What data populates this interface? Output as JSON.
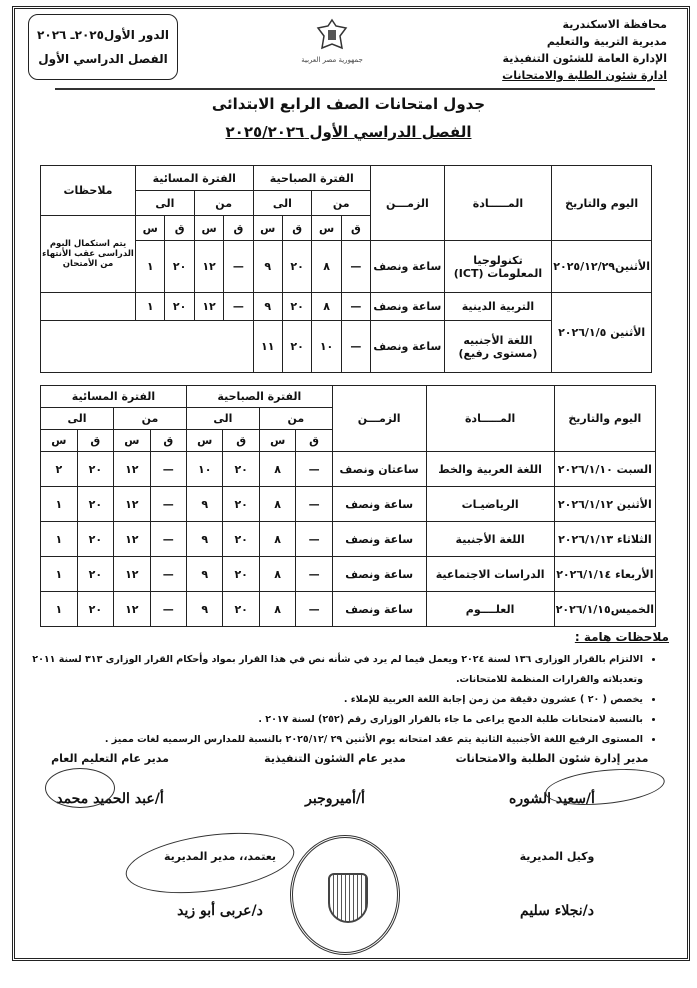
{
  "header": {
    "org_lines": [
      "محافظة الاسكندرية",
      "مديرية التربية والتعليم",
      "الإدارة العامة للشئون التنفيذية",
      "ادارة شئون الطلبة والامتحانات"
    ],
    "box_line1": "الدور الأول٢٠٢٥ـ ٢٠٢٦",
    "box_line2": "الفصل الدراسي الأول",
    "emblem_text": "جمهورية مصر العربية"
  },
  "title": "جدول امتحانات الصف الرابع الابتدائى",
  "subtitle": "الفصل الدراسي الأول ٢٠٢٥/٢٠٢٦",
  "table_headers": {
    "date": "اليوم والتاريخ",
    "subject": "المـــــادة",
    "duration": "الزمـــن",
    "morning": "الفترة الصباحية",
    "evening": "الفترة المسائية",
    "from": "من",
    "to": "الى",
    "min": "ق",
    "hour": "س",
    "notes": "ملاحظات"
  },
  "table1": {
    "rows": [
      {
        "date": "الأثنين٢٠٢٥/١٢/٢٩",
        "subject": "تكنولوجيا المعلومات (ICT)",
        "duration": "ساعة ونصف",
        "times": [
          "—",
          "٨",
          "٢٠",
          "٩",
          "—",
          "١٢",
          "٢٠",
          "١"
        ],
        "notes": "يتم استكمال اليوم الدراسى عقب الأنتهاء من الأمتحان"
      },
      {
        "date": "الأثنين ٢٠٢٦/١/٥",
        "subject": "التربية الدينية",
        "duration": "ساعة ونصف",
        "times": [
          "—",
          "٨",
          "٢٠",
          "٩",
          "—",
          "١٢",
          "٢٠",
          "١"
        ]
      },
      {
        "subject": "اللغة الأجنبيه (مستوى رفيع)",
        "duration": "ساعة ونصف",
        "times": [
          "—",
          "١٠",
          "٢٠",
          "١١"
        ]
      }
    ]
  },
  "table2": {
    "rows": [
      {
        "date": "السبت ٢٠٢٦/١/١٠",
        "subject": "اللغة العربية والخط",
        "duration": "ساعتان ونصف",
        "times": [
          "—",
          "٨",
          "٢٠",
          "١٠",
          "—",
          "١٢",
          "٢٠",
          "٢"
        ]
      },
      {
        "date": "الأثنين ٢٠٢٦/١/١٢",
        "subject": "الرياضيـات",
        "duration": "ساعة ونصف",
        "times": [
          "—",
          "٨",
          "٢٠",
          "٩",
          "—",
          "١٢",
          "٢٠",
          "١"
        ]
      },
      {
        "date": "الثلاثاء ٢٠٢٦/١/١٣",
        "subject": "اللغة الأجنبية",
        "duration": "ساعة ونصف",
        "times": [
          "—",
          "٨",
          "٢٠",
          "٩",
          "—",
          "١٢",
          "٢٠",
          "١"
        ]
      },
      {
        "date": "الأربعاء ٢٠٢٦/١/١٤",
        "subject": "الدراسات الاجتماعية",
        "duration": "ساعة ونصف",
        "times": [
          "—",
          "٨",
          "٢٠",
          "٩",
          "—",
          "١٢",
          "٢٠",
          "١"
        ]
      },
      {
        "date": "الخميس٢٠٢٦/١/١٥",
        "subject": "العلــــوم",
        "duration": "ساعة ونصف",
        "times": [
          "—",
          "٨",
          "٢٠",
          "٩",
          "—",
          "١٢",
          "٢٠",
          "١"
        ]
      }
    ]
  },
  "notes": {
    "title": "ملاحظات هامة :",
    "items": [
      "الالتزام بالقرار الوزارى ١٣٦ لسنة ٢٠٢٤ ويعمل فيما لم يرد في شأنه نص في هذا القرار بمواد وأحكام القرار الوزارى ٣١٣ لسنة ٢٠١١ وتعديلاته والقرارات المنظمة للامتحانات.",
      "يخصص ( ٢٠ ) عشرون دقيقة من زمن إجابة اللغة العربية للإملاء .",
      "بالنسبة لامتحانات طلبة الدمج يراعى ما جاء بالقرار الوزارى رقم (٢٥٢) لسنة ٢٠١٧ .",
      "المستوى الرفيع اللغة الأجنبية الثانية يتم عقد امتحانه يوم الأثنين ٢٩ /٢٠٢٥/١٢ بالنسبة للمدارس الرسميه لغات مميز ."
    ]
  },
  "signatures": [
    {
      "role": "مدير إدارة شئون الطلبة والامتحانات",
      "name": "أ/سعيد الشوره"
    },
    {
      "role": "مدير عام الشئون التنفيذية",
      "name": "أ/أميروجبر"
    },
    {
      "role": "مدير عام التعليم العام",
      "name": "أ/عبد الحميد محمد"
    },
    {
      "role": "وكيل المديرية",
      "name": "د/نجلاء سليم"
    },
    {
      "role": "يعتمد،، مدير المديرية",
      "name": "د/عربى أبو زيد"
    }
  ]
}
